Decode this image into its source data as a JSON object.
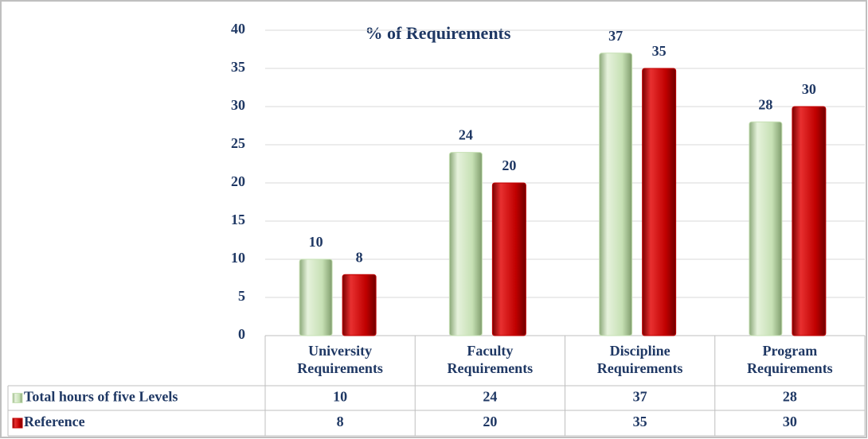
{
  "chart_data": {
    "type": "bar",
    "title": "% of Requirements",
    "categories": [
      "University Requirements",
      "Faculty Requirements",
      "Discipline Requirements",
      "Program Requirements"
    ],
    "series": [
      {
        "name": "Total hours of five Levels",
        "color": "#c6e0b4",
        "values": [
          10,
          24,
          37,
          28
        ]
      },
      {
        "name": "Reference",
        "color": "#c00000",
        "values": [
          8,
          20,
          35,
          30
        ]
      }
    ],
    "ylim": [
      0,
      40
    ],
    "yticks": [
      0,
      5,
      10,
      15,
      20,
      25,
      30,
      35,
      40
    ],
    "grid": true,
    "data_table": true
  }
}
